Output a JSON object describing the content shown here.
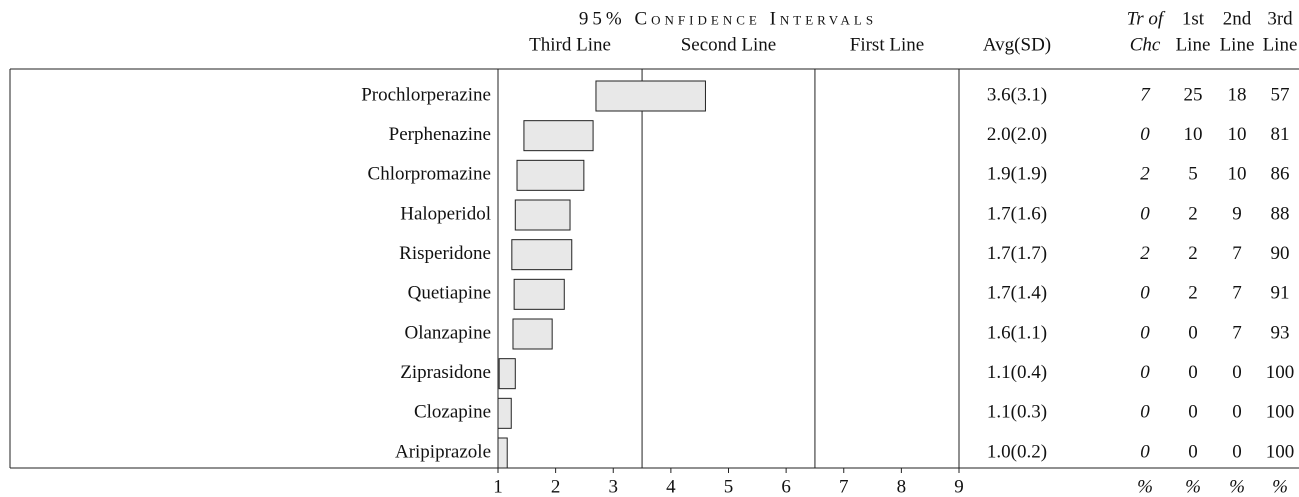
{
  "chart_data": {
    "type": "interval",
    "title": "95% Confidence Intervals",
    "band_labels": [
      "Third Line",
      "Second Line",
      "First Line"
    ],
    "band_boundaries": [
      3.5,
      6.5
    ],
    "xlim": [
      1,
      9
    ],
    "xticks": [
      1,
      2,
      3,
      4,
      5,
      6,
      7,
      8,
      9
    ],
    "bar_color": "#e8e8e8",
    "column_headers": {
      "avg_sd": [
        "Avg(SD)"
      ],
      "tr_of_chc": [
        "Tr of",
        "Chc"
      ],
      "first": [
        "1st",
        "Line"
      ],
      "second": [
        "2nd",
        "Line"
      ],
      "third": [
        "3rd",
        "Line"
      ]
    },
    "column_units": {
      "tr_of_chc": "%",
      "first": "%",
      "second": "%",
      "third": "%"
    },
    "rows": [
      {
        "name": "Prochlorperazine",
        "low": 2.7,
        "high": 4.6,
        "avg_sd": "3.6(3.1)",
        "tr_of_chc": 7,
        "first": 25,
        "second": 18,
        "third": 57
      },
      {
        "name": "Perphenazine",
        "low": 1.45,
        "high": 2.65,
        "avg_sd": "2.0(2.0)",
        "tr_of_chc": 0,
        "first": 10,
        "second": 10,
        "third": 81
      },
      {
        "name": "Chlorpromazine",
        "low": 1.33,
        "high": 2.49,
        "avg_sd": "1.9(1.9)",
        "tr_of_chc": 2,
        "first": 5,
        "second": 10,
        "third": 86
      },
      {
        "name": "Haloperidol",
        "low": 1.3,
        "high": 2.25,
        "avg_sd": "1.7(1.6)",
        "tr_of_chc": 0,
        "first": 2,
        "second": 9,
        "third": 88
      },
      {
        "name": "Risperidone",
        "low": 1.24,
        "high": 2.28,
        "avg_sd": "1.7(1.7)",
        "tr_of_chc": 2,
        "first": 2,
        "second": 7,
        "third": 90
      },
      {
        "name": "Quetiapine",
        "low": 1.28,
        "high": 2.15,
        "avg_sd": "1.7(1.4)",
        "tr_of_chc": 0,
        "first": 2,
        "second": 7,
        "third": 91
      },
      {
        "name": "Olanzapine",
        "low": 1.26,
        "high": 1.94,
        "avg_sd": "1.6(1.1)",
        "tr_of_chc": 0,
        "first": 0,
        "second": 7,
        "third": 93
      },
      {
        "name": "Ziprasidone",
        "low": 1.02,
        "high": 1.3,
        "avg_sd": "1.1(0.4)",
        "tr_of_chc": 0,
        "first": 0,
        "second": 0,
        "third": 100
      },
      {
        "name": "Clozapine",
        "low": 1.0,
        "high": 1.23,
        "avg_sd": "1.1(0.3)",
        "tr_of_chc": 0,
        "first": 0,
        "second": 0,
        "third": 100
      },
      {
        "name": "Aripiprazole",
        "low": 1.0,
        "high": 1.16,
        "avg_sd": "1.0(0.2)",
        "tr_of_chc": 0,
        "first": 0,
        "second": 0,
        "third": 100
      }
    ]
  }
}
